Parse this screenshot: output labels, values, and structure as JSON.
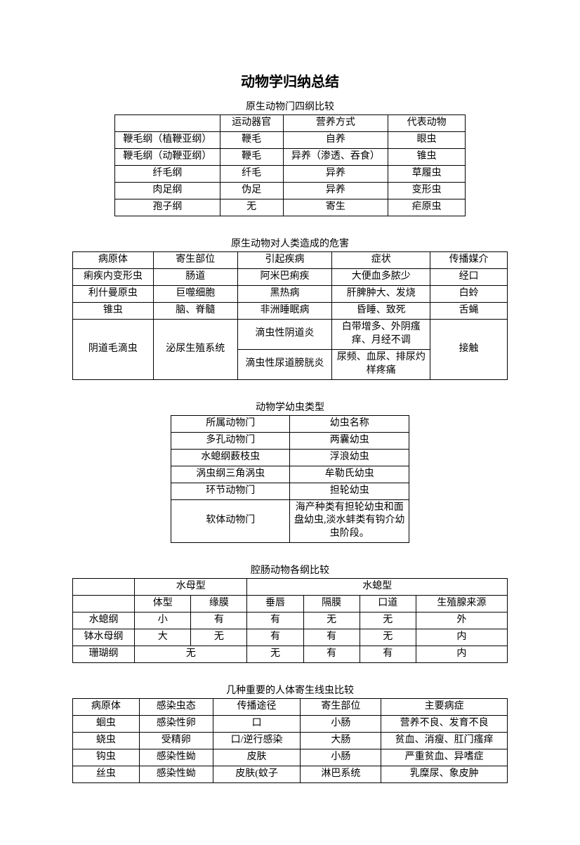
{
  "title": "动物学归纳总结",
  "table1": {
    "caption": "原生动物门四纲比较",
    "header": [
      "",
      "运动器官",
      "营养方式",
      "代表动物"
    ],
    "rows": [
      [
        "鞭毛纲（植鞭亚纲）",
        "鞭毛",
        "自养",
        "眼虫"
      ],
      [
        "鞭毛纲（动鞭亚纲）",
        "鞭毛",
        "异养（渗透、吞食）",
        "锥虫"
      ],
      [
        "纤毛纲",
        "纤毛",
        "异养",
        "草履虫"
      ],
      [
        "肉足纲",
        "伪足",
        "异养",
        "变形虫"
      ],
      [
        "孢子纲",
        "无",
        "寄生",
        "疟原虫"
      ]
    ]
  },
  "table2": {
    "caption": "原生动物对人类造成的危害",
    "header": [
      "病原体",
      "寄生部位",
      "引起疾病",
      "症状",
      "传播媒介"
    ],
    "r1": [
      "痢疾内变形虫",
      "肠道",
      "阿米巴痢疾",
      "大便血多脓少",
      "经口"
    ],
    "r2": [
      "利什曼原虫",
      "巨噬细胞",
      "黑热病",
      "肝脾肿大、发烧",
      "白蛉"
    ],
    "r3": [
      "锥虫",
      "脑、脊髓",
      "非洲睡眠病",
      "昏睡、致死",
      "舌蝇"
    ],
    "r4_pathogen": "阴道毛滴虫",
    "r4_site": "泌尿生殖系统",
    "r4_dis1": "滴虫性阴道炎",
    "r4_sym1": "白带增多、外阴瘙痒、月经不调",
    "r4_dis2": "滴虫性尿道膀胱炎",
    "r4_sym2": "尿频、血尿、排尿灼样疼痛",
    "r4_media": "接触"
  },
  "table3": {
    "caption": "动物学幼虫类型",
    "header": [
      "所属动物门",
      "幼虫名称"
    ],
    "rows": [
      [
        "多孔动物门",
        "两囊幼虫"
      ],
      [
        "水螅纲薮枝虫",
        "浮浪幼虫"
      ],
      [
        "涡虫纲三角涡虫",
        "牟勒氏幼虫"
      ],
      [
        "环节动物门",
        "担轮幼虫"
      ]
    ],
    "lastrow": [
      "软体动物门",
      "海产种类有担轮幼虫和面盘幼虫,淡水蚌类有钩介幼虫阶段。"
    ]
  },
  "table4": {
    "caption": "腔肠动物各纲比较",
    "head_jelly": "水母型",
    "head_polyp": "水螅型",
    "sub": [
      "",
      "体型",
      "缘膜",
      "垂唇",
      "隔膜",
      "口道",
      "生殖腺来源"
    ],
    "rows": [
      [
        "水螅纲",
        "小",
        "有",
        "有",
        "无",
        "无",
        "外"
      ],
      [
        "钵水母纲",
        "大",
        "无",
        "有",
        "有",
        "无",
        "内"
      ]
    ],
    "coral_row": [
      "珊瑚纲",
      "无",
      "无",
      "有",
      "有",
      "内"
    ]
  },
  "table5": {
    "caption": "几种重要的人体寄生线虫比较",
    "header": [
      "病原体",
      "感染虫态",
      "传播途径",
      "寄生部位",
      "主要病症"
    ],
    "rows": [
      [
        "蛔虫",
        "感染性卵",
        "口",
        "小肠",
        "营养不良、发育不良"
      ],
      [
        "蛲虫",
        "受精卵",
        "口/逆行感染",
        "大肠",
        "贫血、消瘦、肛门瘙痒"
      ],
      [
        "钩虫",
        "感染性蚴",
        "皮肤",
        "小肠",
        "严重贫血、异嗜症"
      ],
      [
        "丝虫",
        "感染性蚴",
        "皮肤(蚊子",
        "淋巴系统",
        "乳糜尿、象皮肿"
      ]
    ]
  }
}
